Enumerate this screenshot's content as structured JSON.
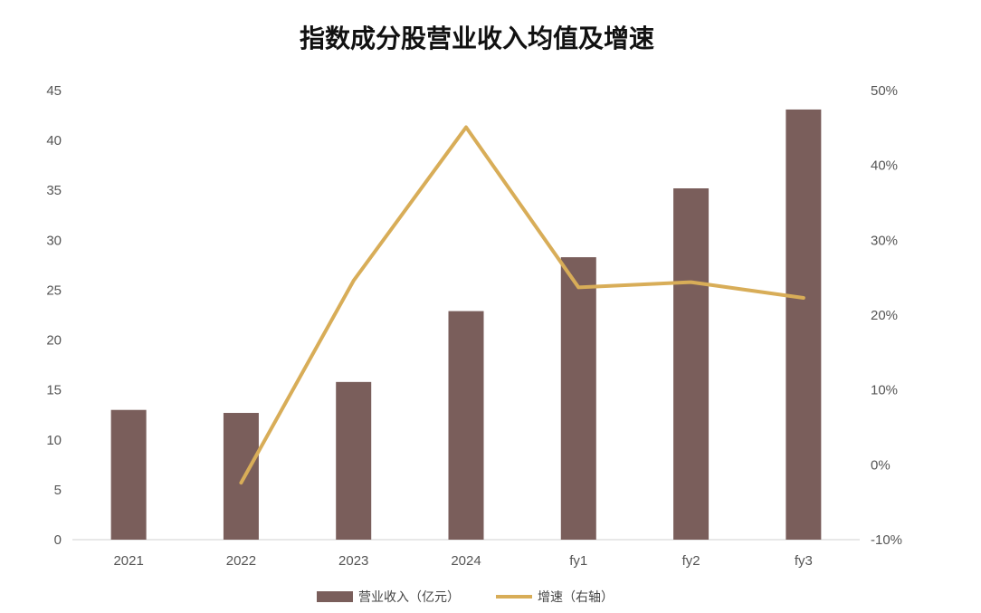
{
  "chart_data": {
    "type": "bar",
    "title": "指数成分股营业收入均值及增速",
    "categories": [
      "2021",
      "2022",
      "2023",
      "2024",
      "fy1",
      "fy2",
      "fy3"
    ],
    "series": [
      {
        "name": "营业收入（亿元）",
        "type": "bar",
        "axis": "left",
        "color": "#7a5e5b",
        "values": [
          13.0,
          12.7,
          15.8,
          22.9,
          28.3,
          35.2,
          43.1
        ]
      },
      {
        "name": "增速（右轴）",
        "type": "line",
        "axis": "right",
        "color": "#d8ad58",
        "values": [
          null,
          -2.4,
          24.6,
          45.1,
          23.7,
          24.4,
          22.3
        ]
      }
    ],
    "y_left": {
      "min": 0,
      "max": 45,
      "step": 5,
      "ticks": [
        "0",
        "5",
        "10",
        "15",
        "20",
        "25",
        "30",
        "35",
        "40",
        "45"
      ]
    },
    "y_right": {
      "min": -10,
      "max": 50,
      "step": 10,
      "ticks": [
        "-10%",
        "0%",
        "10%",
        "20%",
        "30%",
        "40%",
        "50%"
      ]
    },
    "grid": false,
    "legend_position": "bottom"
  }
}
